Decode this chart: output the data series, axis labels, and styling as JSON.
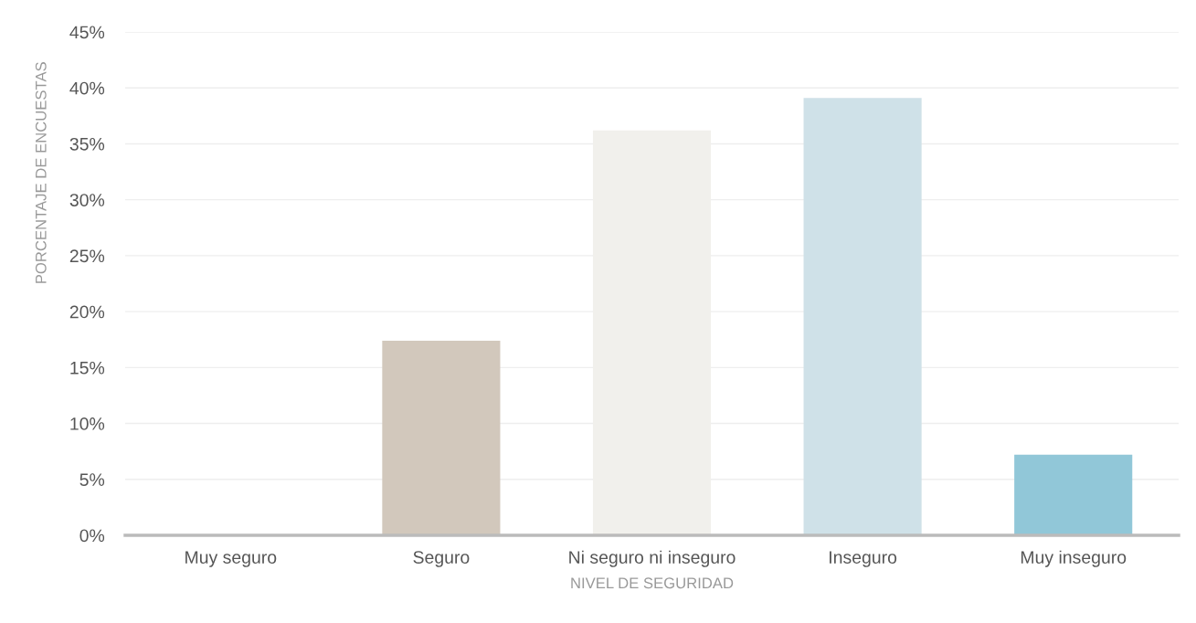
{
  "chart_data": {
    "type": "bar",
    "xlabel": "NIVEL DE SEGURIDAD",
    "ylabel": "PORCENTAJE DE ENCUESTAS",
    "categories": [
      "Muy seguro",
      "Seguro",
      "Ni seguro ni inseguro",
      "Inseguro",
      "Muy inseguro"
    ],
    "values": [
      0,
      17.4,
      36.2,
      39.1,
      7.2
    ],
    "colors": [
      "#d2c8bc",
      "#d2c8bc",
      "#f1f0ec",
      "#cfe1e8",
      "#91c7d8"
    ],
    "ylim": [
      0,
      45
    ],
    "yticks": [
      {
        "value": 0,
        "label": "0%"
      },
      {
        "value": 5,
        "label": "5%"
      },
      {
        "value": 10,
        "label": "10%"
      },
      {
        "value": 15,
        "label": "15%"
      },
      {
        "value": 20,
        "label": "20%"
      },
      {
        "value": 25,
        "label": "25%"
      },
      {
        "value": 30,
        "label": "30%"
      },
      {
        "value": 35,
        "label": "35%"
      },
      {
        "value": 40,
        "label": "40%"
      },
      {
        "value": 45,
        "label": "45%"
      }
    ],
    "grid": "y",
    "legend": false
  }
}
